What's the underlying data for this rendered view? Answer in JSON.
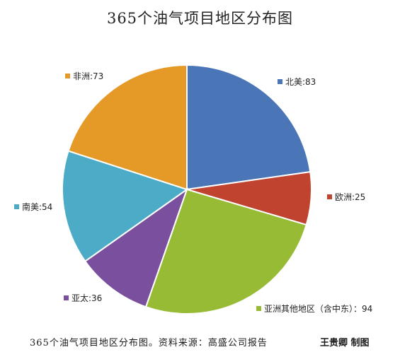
{
  "chart_data": {
    "type": "pie",
    "title": "365个油气项目地区分布图",
    "categories": [
      "北美",
      "欧洲",
      "亚洲其他地区（含中东）",
      "亚太",
      "南美",
      "非洲"
    ],
    "values": [
      83,
      25,
      94,
      36,
      54,
      73
    ],
    "data_labels": [
      "北美:83",
      "欧洲:25",
      "亚洲其他地区（含中东）：94",
      "亚太:36",
      "南美:54",
      "非洲:73"
    ],
    "colors": [
      "#4a76b8",
      "#c0432f",
      "#98bb35",
      "#7a4f9e",
      "#4cabc6",
      "#e59a27"
    ],
    "start_angle_deg": 0,
    "direction": "clockwise",
    "legend": "none"
  },
  "caption": "365个油气项目地区分布图。资料来源：高盛公司报告",
  "credit": "王贵卿 制图"
}
